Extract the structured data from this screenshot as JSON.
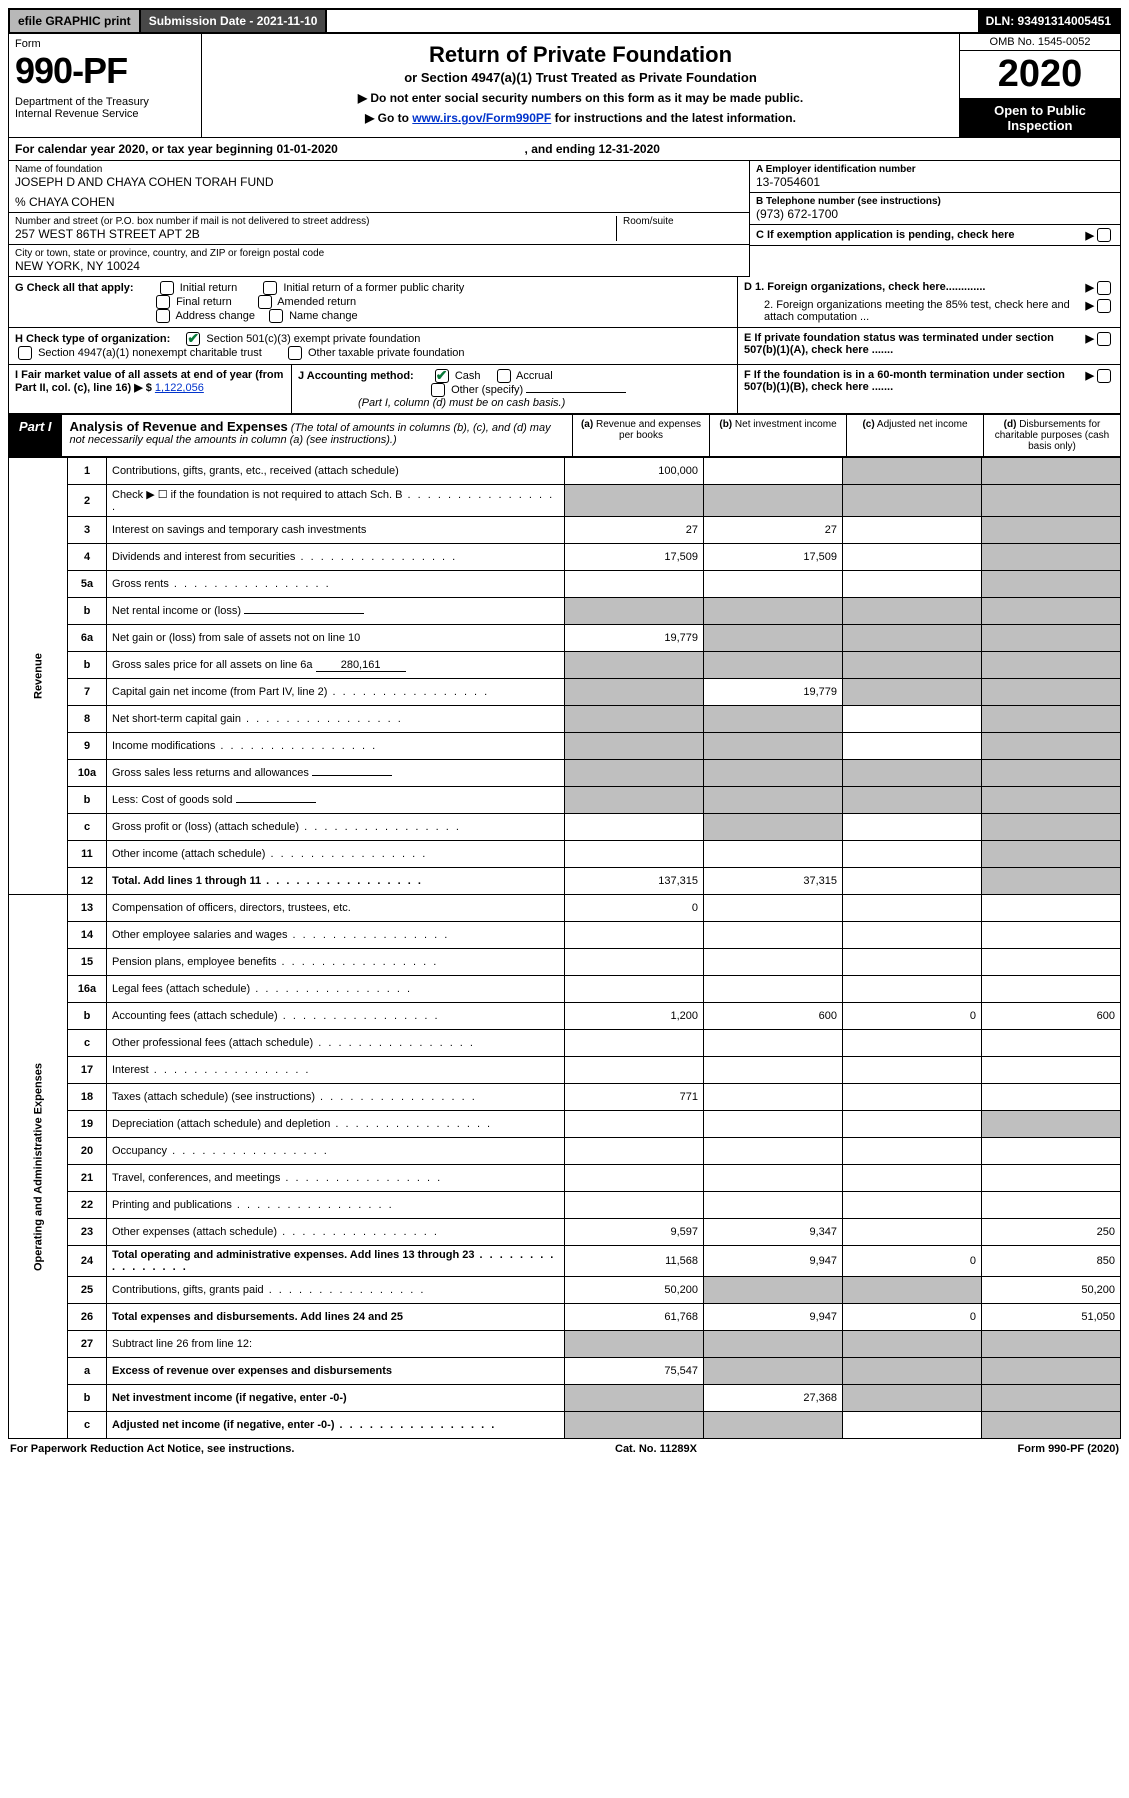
{
  "topbar": {
    "efile": "efile GRAPHIC print",
    "submission": "Submission Date - 2021-11-10",
    "dln": "DLN: 93491314005451"
  },
  "header": {
    "form": "Form",
    "formno": "990-PF",
    "dept": "Department of the Treasury",
    "irs": "Internal Revenue Service",
    "title": "Return of Private Foundation",
    "subtitle": "or Section 4947(a)(1) Trust Treated as Private Foundation",
    "instr1": "▶ Do not enter social security numbers on this form as it may be made public.",
    "instr2_pre": "▶ Go to ",
    "instr2_link": "www.irs.gov/Form990PF",
    "instr2_post": " for instructions and the latest information.",
    "omb": "OMB No. 1545-0052",
    "year": "2020",
    "open": "Open to Public Inspection"
  },
  "cal": {
    "text_pre": "For calendar year 2020, or tax year beginning ",
    "begin": "01-01-2020",
    "text_mid": ", and ending ",
    "end": "12-31-2020"
  },
  "info": {
    "name_lbl": "Name of foundation",
    "name": "JOSEPH D AND CHAYA COHEN TORAH FUND",
    "co": "% CHAYA COHEN",
    "addr_lbl": "Number and street (or P.O. box number if mail is not delivered to street address)",
    "addr": "257 WEST 86TH STREET APT 2B",
    "room_lbl": "Room/suite",
    "city_lbl": "City or town, state or province, country, and ZIP or foreign postal code",
    "city": "NEW YORK, NY  10024",
    "ein_lbl": "A Employer identification number",
    "ein": "13-7054601",
    "tel_lbl": "B Telephone number (see instructions)",
    "tel": "(973) 672-1700",
    "c_lbl": "C If exemption application is pending, check here",
    "d1": "D 1. Foreign organizations, check here.............",
    "d2": "2. Foreign organizations meeting the 85% test, check here and attach computation ...",
    "e": "E If private foundation status was terminated under section 507(b)(1)(A), check here .......",
    "f": "F If the foundation is in a 60-month termination under section 507(b)(1)(B), check here .......",
    "g_lbl": "G Check all that apply:",
    "g_opts": [
      "Initial return",
      "Initial return of a former public charity",
      "Final return",
      "Amended return",
      "Address change",
      "Name change"
    ],
    "h_lbl": "H Check type of organization:",
    "h1": "Section 501(c)(3) exempt private foundation",
    "h2": "Section 4947(a)(1) nonexempt charitable trust",
    "h3": "Other taxable private foundation",
    "i_lbl": "I Fair market value of all assets at end of year (from Part II, col. (c), line 16) ▶ $",
    "i_val": "1,122,056",
    "j_lbl": "J Accounting method:",
    "j_cash": "Cash",
    "j_accrual": "Accrual",
    "j_other": "Other (specify)",
    "j_note": "(Part I, column (d) must be on cash basis.)"
  },
  "part1": {
    "label": "Part I",
    "title": "Analysis of Revenue and Expenses",
    "note": " (The total of amounts in columns (b), (c), and (d) may not necessarily equal the amounts in column (a) (see instructions).)",
    "col_a": "(a) Revenue and expenses per books",
    "col_b": "(b) Net investment income",
    "col_c": "(c) Adjusted net income",
    "col_d": "(d) Disbursements for charitable purposes (cash basis only)"
  },
  "sections": {
    "revenue": "Revenue",
    "expenses": "Operating and Administrative Expenses"
  },
  "rows": [
    {
      "n": "1",
      "d": "shade",
      "a": "100,000",
      "b": "",
      "c": "shade"
    },
    {
      "n": "2",
      "d": "shade",
      "a": "shade",
      "b": "shade",
      "c": "shade",
      "dotted": true
    },
    {
      "n": "3",
      "d": "shade",
      "a": "27",
      "b": "27",
      "c": ""
    },
    {
      "n": "4",
      "d": "shade",
      "a": "17,509",
      "b": "17,509",
      "c": ""
    },
    {
      "n": "5a",
      "d": "shade",
      "a": "",
      "b": "",
      "c": "",
      "dotted": true
    },
    {
      "n": "b",
      "d": "shade",
      "a": "shade",
      "b": "shade",
      "c": "shade",
      "inline": true
    },
    {
      "n": "6a",
      "d": "shade",
      "a": "19,779",
      "b": "shade",
      "c": "shade"
    },
    {
      "n": "b",
      "d": "shade",
      "a": "shade",
      "b": "shade",
      "c": "shade",
      "inline": true,
      "inlineval": "280,161"
    },
    {
      "n": "7",
      "d": "shade",
      "a": "shade",
      "b": "19,779",
      "c": "shade"
    },
    {
      "n": "8",
      "d": "shade",
      "a": "shade",
      "b": "shade",
      "c": "",
      "dotted": true
    },
    {
      "n": "9",
      "d": "shade",
      "a": "shade",
      "b": "shade",
      "c": "",
      "dotted": true
    },
    {
      "n": "10a",
      "d": "shade",
      "a": "shade",
      "b": "shade",
      "c": "shade",
      "inline": true
    },
    {
      "n": "b",
      "d": "shade",
      "a": "shade",
      "b": "shade",
      "c": "shade",
      "inline": true
    },
    {
      "n": "c",
      "d": "shade",
      "a": "",
      "b": "shade",
      "c": "",
      "dotted": true
    },
    {
      "n": "11",
      "d": "shade",
      "a": "",
      "b": "",
      "c": "",
      "dotted": true
    },
    {
      "n": "12",
      "d": "shade",
      "a": "137,315",
      "b": "37,315",
      "c": "",
      "bold": true,
      "dotted": true
    }
  ],
  "exp_rows": [
    {
      "n": "13",
      "d": "",
      "a": "0",
      "b": "",
      "c": ""
    },
    {
      "n": "14",
      "d": "",
      "a": "",
      "b": "",
      "c": "",
      "dotted": true
    },
    {
      "n": "15",
      "d": "",
      "a": "",
      "b": "",
      "c": "",
      "dotted": true
    },
    {
      "n": "16a",
      "d": "",
      "a": "",
      "b": "",
      "c": "",
      "dotted": true
    },
    {
      "n": "b",
      "d": "600",
      "a": "1,200",
      "b": "600",
      "c": "0",
      "dotted": true
    },
    {
      "n": "c",
      "d": "",
      "a": "",
      "b": "",
      "c": "",
      "dotted": true
    },
    {
      "n": "17",
      "d": "",
      "a": "",
      "b": "",
      "c": "",
      "dotted": true
    },
    {
      "n": "18",
      "d": "",
      "a": "771",
      "b": "",
      "c": ""
    },
    {
      "n": "19",
      "d": "shade",
      "a": "",
      "b": "",
      "c": ""
    },
    {
      "n": "20",
      "d": "",
      "a": "",
      "b": "",
      "c": "",
      "dotted": true
    },
    {
      "n": "21",
      "d": "",
      "a": "",
      "b": "",
      "c": "",
      "dotted": true
    },
    {
      "n": "22",
      "d": "",
      "a": "",
      "b": "",
      "c": "",
      "dotted": true
    },
    {
      "n": "23",
      "d": "250",
      "a": "9,597",
      "b": "9,347",
      "c": "",
      "dotted": true
    },
    {
      "n": "24",
      "d": "850",
      "a": "11,568",
      "b": "9,947",
      "c": "0",
      "bold": true,
      "dotted": true
    },
    {
      "n": "25",
      "d": "50,200",
      "a": "50,200",
      "b": "shade",
      "c": "shade",
      "dotted": true
    },
    {
      "n": "26",
      "d": "51,050",
      "a": "61,768",
      "b": "9,947",
      "c": "0",
      "bold": true
    },
    {
      "n": "27",
      "d": "shade",
      "a": "shade",
      "b": "shade",
      "c": "shade"
    },
    {
      "n": "a",
      "d": "shade",
      "a": "75,547",
      "b": "shade",
      "c": "shade",
      "bold": true
    },
    {
      "n": "b",
      "d": "shade",
      "a": "shade",
      "b": "27,368",
      "c": "shade",
      "bold": true
    },
    {
      "n": "c",
      "d": "shade",
      "a": "shade",
      "b": "shade",
      "c": "",
      "bold": true,
      "dotted": true
    }
  ],
  "footer": {
    "left": "For Paperwork Reduction Act Notice, see instructions.",
    "mid": "Cat. No. 11289X",
    "right": "Form 990-PF (2020)"
  }
}
